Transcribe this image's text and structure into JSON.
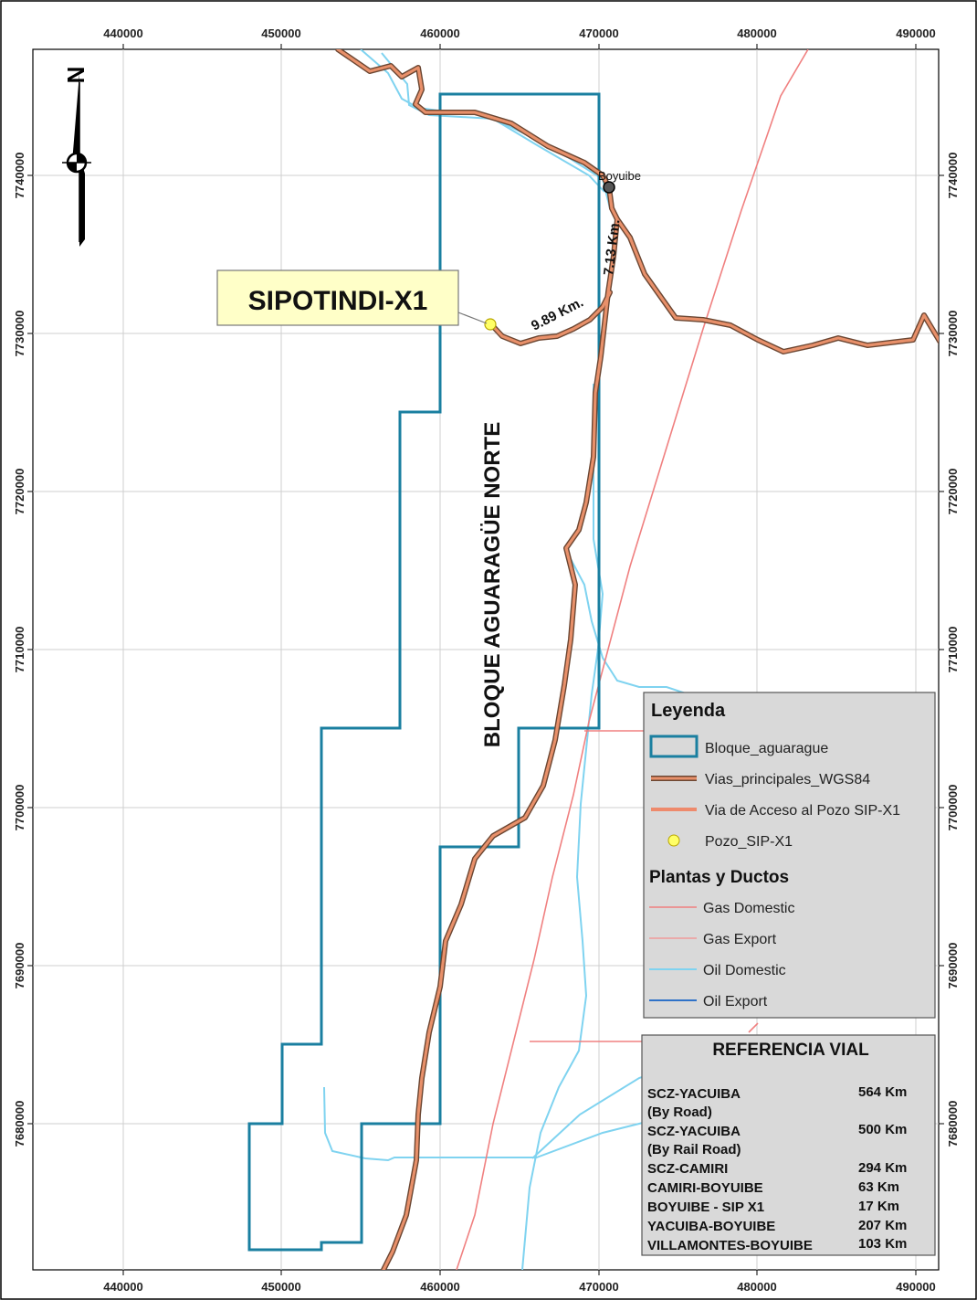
{
  "axes": {
    "x_ticks": [
      "440000",
      "450000",
      "460000",
      "470000",
      "480000",
      "490000"
    ],
    "y_ticks": [
      "7740000",
      "7730000",
      "7720000",
      "7710000",
      "7700000",
      "7690000",
      "7680000"
    ]
  },
  "labels": {
    "north_letter": "N",
    "well_name": "SIPOTINDI-X1",
    "block_name": "BLOQUE AGUARAGÜE NORTE",
    "town": "Boyuibe",
    "distance_access": "9.89 Km.",
    "distance_road": "7.13 Km."
  },
  "legend": {
    "title": "Leyenda",
    "items": [
      {
        "label": "Bloque_aguarague",
        "symbol": "polygon",
        "color": "#1a7fa0"
      },
      {
        "label": "Vias_principales_WGS84",
        "symbol": "road",
        "color": "#e8906a"
      },
      {
        "label": "Via de Acceso al Pozo SIP-X1",
        "symbol": "line",
        "color": "#ee8a6c"
      },
      {
        "label": "Pozo_SIP-X1",
        "symbol": "point",
        "color": "#ffff66"
      }
    ],
    "section_title": "Plantas y Ductos",
    "ducts": [
      {
        "label": "Gas Domestic",
        "color": "#f08080"
      },
      {
        "label": "Gas Export",
        "color": "#f09a9a"
      },
      {
        "label": "Oil Domestic",
        "color": "#7fd3f0"
      },
      {
        "label": "Oil Export",
        "color": "#2f72c8"
      }
    ]
  },
  "reference": {
    "title": "REFERENCIA VIAL",
    "rows": [
      {
        "route": "SCZ-YACUIBA",
        "sub": "(By Road)",
        "distance": "564 Km"
      },
      {
        "route": "SCZ-YACUIBA",
        "sub": "(By Rail Road)",
        "distance": "500 Km"
      },
      {
        "route": "SCZ-CAMIRI",
        "sub": "",
        "distance": "294 Km"
      },
      {
        "route": "CAMIRI-BOYUIBE",
        "sub": "",
        "distance": "63 Km"
      },
      {
        "route": "BOYUIBE - SIP X1",
        "sub": "",
        "distance": "17 Km"
      },
      {
        "route": "YACUIBA-BOYUIBE",
        "sub": "",
        "distance": "207 Km"
      },
      {
        "route": "VILLAMONTES-BOYUIBE",
        "sub": "",
        "distance": "103 Km"
      }
    ]
  },
  "colors": {
    "block_outline": "#1a7fa0",
    "road_casing": "#6b4632",
    "road_fill": "#e8906a",
    "oil_line": "#7fd3f0",
    "gas_line": "#f08080",
    "legend_bg": "#d9d9d9"
  }
}
